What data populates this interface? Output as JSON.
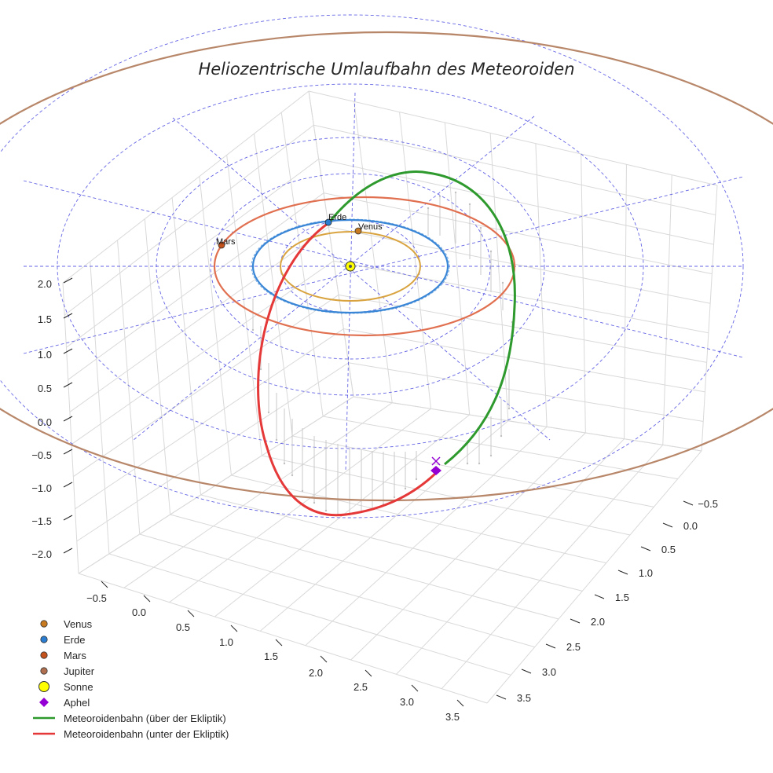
{
  "chart_data": {
    "type": "line",
    "projection": "3d",
    "title": "Heliozentrische Umlaufbahn des Meteoroiden",
    "xlabel": "",
    "ylabel": "",
    "zlabel": "",
    "x_ticks": [
      "−0.5",
      "0.0",
      "0.5",
      "1.0",
      "1.5",
      "2.0",
      "2.5",
      "3.0",
      "3.5"
    ],
    "y_ticks": [
      "−0.5",
      "0.0",
      "0.5",
      "1.0",
      "1.5",
      "2.0",
      "2.5",
      "3.0",
      "3.5"
    ],
    "z_ticks": [
      "−2.0",
      "−1.5",
      "−1.0",
      "−0.5",
      "0.0",
      "0.5",
      "1.0",
      "1.5",
      "2.0"
    ],
    "xlim": [
      -0.75,
      3.75
    ],
    "ylim": [
      -0.75,
      3.75
    ],
    "zlim": [
      -2.3,
      2.3
    ],
    "grid": true,
    "legend_position": "bottom-left",
    "colors": {
      "venus": "#c87a20",
      "erde": "#2a7dd0",
      "mars": "#c4521c",
      "jupiter": "#b8876a",
      "sonne": "#ffff00",
      "aphel": "#9400d3",
      "above": "#2e9a2e",
      "below": "#e53838",
      "ecliptic_grid": "#4a4ae0"
    },
    "planets": [
      {
        "name": "Venus",
        "radius_au": 0.72,
        "label": "Venus"
      },
      {
        "name": "Erde",
        "radius_au": 1.0,
        "label": "Erde"
      },
      {
        "name": "Mars",
        "radius_au": 1.52,
        "label": "Mars"
      },
      {
        "name": "Jupiter",
        "radius_au": 5.2,
        "label": ""
      }
    ],
    "sonne": {
      "x": 0,
      "y": 0,
      "z": 0
    },
    "aphel": {
      "r_au": 2.2
    },
    "meteoroid_orbit": {
      "perihelion_au": 0.95,
      "aphelion_au": 2.2,
      "inclination_deg": 60
    },
    "legend": [
      {
        "label": "Venus",
        "marker": "circle",
        "color": "#c87a20"
      },
      {
        "label": "Erde",
        "marker": "circle",
        "color": "#2a7dd0"
      },
      {
        "label": "Mars",
        "marker": "circle",
        "color": "#c4521c"
      },
      {
        "label": "Jupiter",
        "marker": "circle",
        "color": "#b07050"
      },
      {
        "label": "Sonne",
        "marker": "circle-large",
        "color": "#ffff00"
      },
      {
        "label": "Aphel",
        "marker": "diamond",
        "color": "#9400d3"
      },
      {
        "label": "Meteoroidenbahn (über der Ekliptik)",
        "marker": "line",
        "color": "#2e9a2e"
      },
      {
        "label": "Meteoroidenbahn (unter der Ekliptik)",
        "marker": "line",
        "color": "#e53838"
      }
    ]
  }
}
